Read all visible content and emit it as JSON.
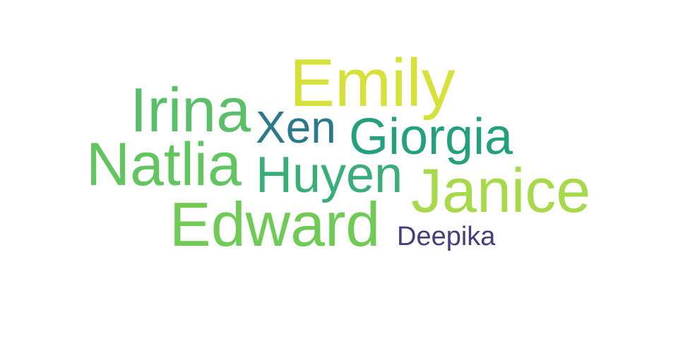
{
  "words": [
    {
      "id": "emily",
      "text": "Emily",
      "color": "#d6e13a"
    },
    {
      "id": "irina",
      "text": "Irina",
      "color": "#5bbf6a"
    },
    {
      "id": "xen",
      "text": "Xen",
      "color": "#2b7a8c"
    },
    {
      "id": "giorgia",
      "text": "Giorgia",
      "color": "#24a07f"
    },
    {
      "id": "natlia",
      "text": "Natlia",
      "color": "#62c55f"
    },
    {
      "id": "huyen",
      "text": "Huyen",
      "color": "#3aae78"
    },
    {
      "id": "janice",
      "text": "Janice",
      "color": "#a8d94a"
    },
    {
      "id": "edward",
      "text": "Edward",
      "color": "#6fca56"
    },
    {
      "id": "deepika",
      "text": "Deepika",
      "color": "#453d7e"
    }
  ]
}
